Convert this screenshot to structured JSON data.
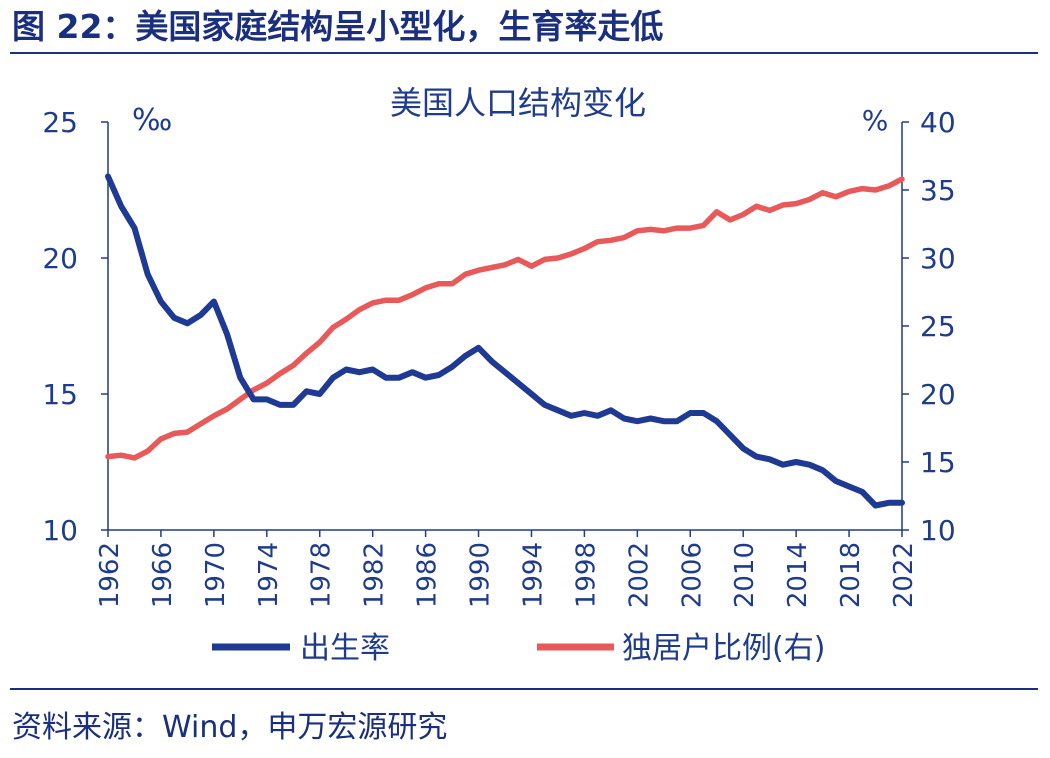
{
  "figure_title": "图 22：美国家庭结构呈小型化，生育率走低",
  "source": "资料来源：Wind，申万宏源研究",
  "colors": {
    "title": "#1a2f7d",
    "birth_rate": "#1f3a93",
    "single_household": "#e85a5a",
    "axis": "#1f3b8c"
  },
  "chart_data": {
    "type": "line",
    "title": "美国人口结构变化",
    "left_unit": "‰",
    "right_unit": "%",
    "y_left": {
      "range": [
        10,
        25
      ],
      "ticks": [
        "10",
        "15",
        "20",
        "25"
      ]
    },
    "y_right": {
      "range": [
        10,
        40
      ],
      "ticks": [
        "10",
        "15",
        "20",
        "25",
        "30",
        "35",
        "40"
      ]
    },
    "x_ticks": [
      "1962",
      "1966",
      "1970",
      "1974",
      "1978",
      "1982",
      "1986",
      "1990",
      "1994",
      "1998",
      "2002",
      "2006",
      "2010",
      "2014",
      "2018",
      "2022"
    ],
    "x": [
      1962,
      1963,
      1964,
      1965,
      1966,
      1967,
      1968,
      1969,
      1970,
      1971,
      1972,
      1973,
      1974,
      1975,
      1976,
      1977,
      1978,
      1979,
      1980,
      1981,
      1982,
      1983,
      1984,
      1985,
      1986,
      1987,
      1988,
      1989,
      1990,
      1991,
      1992,
      1993,
      1994,
      1995,
      1996,
      1997,
      1998,
      1999,
      2000,
      2001,
      2002,
      2003,
      2004,
      2005,
      2006,
      2007,
      2008,
      2009,
      2010,
      2011,
      2012,
      2013,
      2014,
      2015,
      2016,
      2017,
      2018,
      2019,
      2020,
      2021,
      2022
    ],
    "grid": false,
    "legend_position": "bottom",
    "series": [
      {
        "name": "出生率",
        "axis": "left",
        "values": [
          23.0,
          21.9,
          21.1,
          19.4,
          18.4,
          17.8,
          17.6,
          17.9,
          18.4,
          17.2,
          15.6,
          14.8,
          14.8,
          14.6,
          14.6,
          15.1,
          15.0,
          15.6,
          15.9,
          15.8,
          15.9,
          15.6,
          15.6,
          15.8,
          15.6,
          15.7,
          16.0,
          16.4,
          16.7,
          16.2,
          15.8,
          15.4,
          15.0,
          14.6,
          14.4,
          14.2,
          14.3,
          14.2,
          14.4,
          14.1,
          14.0,
          14.1,
          14.0,
          14.0,
          14.3,
          14.3,
          14.0,
          13.5,
          13.0,
          12.7,
          12.6,
          12.4,
          12.5,
          12.4,
          12.2,
          11.8,
          11.6,
          11.4,
          10.9,
          11.0,
          11.0
        ]
      },
      {
        "name": "独居户比例(右)",
        "axis": "right",
        "values": [
          15.4,
          15.5,
          15.3,
          15.8,
          16.7,
          17.1,
          17.2,
          17.8,
          18.4,
          18.9,
          19.6,
          20.3,
          20.8,
          21.5,
          22.1,
          23.0,
          23.8,
          24.9,
          25.5,
          26.2,
          26.7,
          26.9,
          26.9,
          27.3,
          27.8,
          28.1,
          28.1,
          28.8,
          29.1,
          29.3,
          29.5,
          29.9,
          29.4,
          29.9,
          30.0,
          30.3,
          30.7,
          31.2,
          31.3,
          31.5,
          32.0,
          32.1,
          32.0,
          32.2,
          32.2,
          32.4,
          33.4,
          32.8,
          33.2,
          33.8,
          33.5,
          33.9,
          34.0,
          34.3,
          34.8,
          34.5,
          34.9,
          35.1,
          35.0,
          35.3,
          35.8
        ]
      }
    ]
  }
}
